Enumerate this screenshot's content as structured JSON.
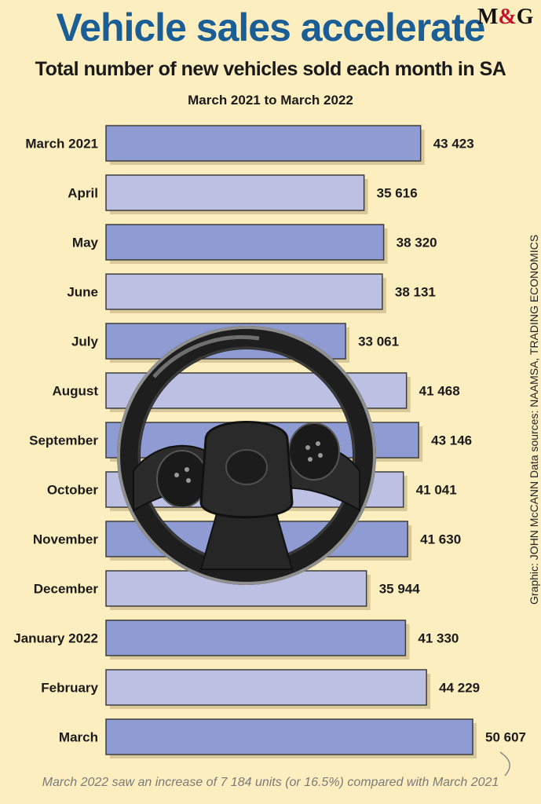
{
  "header": {
    "title": "Vehicle sales accelerate",
    "logo": "M&G",
    "subtitle": "Total number of new vehicles sold each month in SA",
    "date_range": "March 2021 to March 2022"
  },
  "credit": "Graphic: JOHN McCANN  Data sources: NAAMSA, TRADING ECONOMICS",
  "footnote": "March 2022 saw an increase of 7 184 units (or 16.5%) compared with March 2021",
  "colors": {
    "background": "#fdeebf",
    "bar_dark": "#8f9bd3",
    "bar_light": "#bcc1e4",
    "bar_border": "#3d3d3d",
    "shadow": "#d9c99a",
    "title": "#1b5e95"
  },
  "chart_data": {
    "type": "bar",
    "orientation": "horizontal",
    "categories": [
      "March 2021",
      "April",
      "May",
      "June",
      "July",
      "August",
      "September",
      "October",
      "November",
      "December",
      "January 2022",
      "February",
      "March"
    ],
    "values": [
      43423,
      35616,
      38320,
      38131,
      33061,
      41468,
      43146,
      41041,
      41630,
      35944,
      41330,
      44229,
      50607
    ],
    "value_labels": [
      "43 423",
      "35 616",
      "38 320",
      "38 131",
      "33 061",
      "41 468",
      "43 146",
      "41 041",
      "41 630",
      "35 944",
      "41 330",
      "44 229",
      "50 607"
    ],
    "xlim": [
      0,
      50607
    ],
    "grid": false,
    "legend": "none",
    "decoration": "steering-wheel-illustration"
  }
}
